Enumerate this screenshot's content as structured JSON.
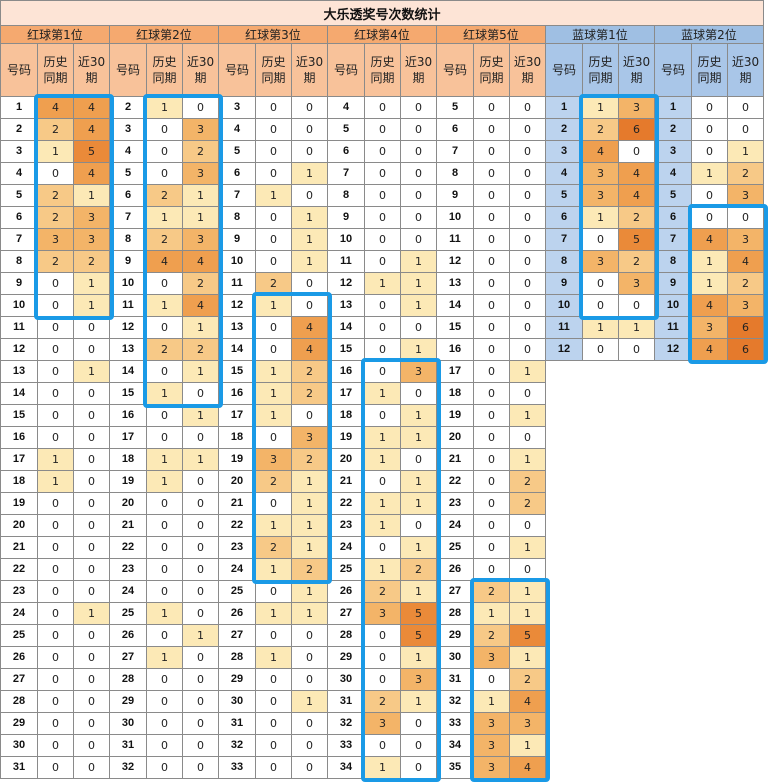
{
  "title": "大乐透奖号次数统计",
  "columns": {
    "num": "号码",
    "hist": "历史同期",
    "recent": "近30期"
  },
  "groups": [
    {
      "name": "红球第1位",
      "color": "red",
      "rows": [
        [
          1,
          4,
          4
        ],
        [
          2,
          2,
          4
        ],
        [
          3,
          1,
          5
        ],
        [
          4,
          0,
          4
        ],
        [
          5,
          2,
          1
        ],
        [
          6,
          2,
          3
        ],
        [
          7,
          3,
          3
        ],
        [
          8,
          2,
          2
        ],
        [
          9,
          0,
          1
        ],
        [
          10,
          0,
          1
        ],
        [
          11,
          0,
          0
        ],
        [
          12,
          0,
          0
        ],
        [
          13,
          0,
          1
        ],
        [
          14,
          0,
          0
        ],
        [
          15,
          0,
          0
        ],
        [
          16,
          0,
          0
        ],
        [
          17,
          1,
          0
        ],
        [
          18,
          1,
          0
        ],
        [
          19,
          0,
          0
        ],
        [
          20,
          0,
          0
        ],
        [
          21,
          0,
          0
        ],
        [
          22,
          0,
          0
        ],
        [
          23,
          0,
          0
        ],
        [
          24,
          0,
          1
        ],
        [
          25,
          0,
          0
        ],
        [
          26,
          0,
          0
        ],
        [
          27,
          0,
          0
        ],
        [
          28,
          0,
          0
        ],
        [
          29,
          0,
          0
        ],
        [
          30,
          0,
          0
        ],
        [
          31,
          0,
          0
        ]
      ]
    },
    {
      "name": "红球第2位",
      "color": "red",
      "rows": [
        [
          2,
          1,
          0
        ],
        [
          3,
          0,
          3
        ],
        [
          4,
          0,
          2
        ],
        [
          5,
          0,
          3
        ],
        [
          6,
          2,
          1
        ],
        [
          7,
          1,
          1
        ],
        [
          8,
          2,
          3
        ],
        [
          9,
          4,
          4
        ],
        [
          10,
          0,
          2
        ],
        [
          11,
          1,
          4
        ],
        [
          12,
          0,
          1
        ],
        [
          13,
          2,
          2
        ],
        [
          14,
          0,
          1
        ],
        [
          15,
          1,
          0
        ],
        [
          16,
          0,
          1
        ],
        [
          17,
          0,
          0
        ],
        [
          18,
          1,
          1
        ],
        [
          19,
          1,
          0
        ],
        [
          20,
          0,
          0
        ],
        [
          21,
          0,
          0
        ],
        [
          22,
          0,
          0
        ],
        [
          23,
          0,
          0
        ],
        [
          24,
          0,
          0
        ],
        [
          25,
          1,
          0
        ],
        [
          26,
          0,
          1
        ],
        [
          27,
          1,
          0
        ],
        [
          28,
          0,
          0
        ],
        [
          29,
          0,
          0
        ],
        [
          30,
          0,
          0
        ],
        [
          31,
          0,
          0
        ],
        [
          32,
          0,
          0
        ]
      ]
    },
    {
      "name": "红球第3位",
      "color": "red",
      "rows": [
        [
          3,
          0,
          0
        ],
        [
          4,
          0,
          0
        ],
        [
          5,
          0,
          0
        ],
        [
          6,
          0,
          1
        ],
        [
          7,
          1,
          0
        ],
        [
          8,
          0,
          1
        ],
        [
          9,
          0,
          1
        ],
        [
          10,
          0,
          1
        ],
        [
          11,
          2,
          0
        ],
        [
          12,
          1,
          0
        ],
        [
          13,
          0,
          4
        ],
        [
          14,
          0,
          4
        ],
        [
          15,
          1,
          2
        ],
        [
          16,
          1,
          2
        ],
        [
          17,
          1,
          0
        ],
        [
          18,
          0,
          3
        ],
        [
          19,
          3,
          2
        ],
        [
          20,
          2,
          1
        ],
        [
          21,
          0,
          1
        ],
        [
          22,
          1,
          1
        ],
        [
          23,
          2,
          1
        ],
        [
          24,
          1,
          2
        ],
        [
          25,
          0,
          1
        ],
        [
          26,
          1,
          1
        ],
        [
          27,
          0,
          0
        ],
        [
          28,
          1,
          0
        ],
        [
          29,
          0,
          0
        ],
        [
          30,
          0,
          1
        ],
        [
          31,
          0,
          0
        ],
        [
          32,
          0,
          0
        ],
        [
          33,
          0,
          0
        ]
      ]
    },
    {
      "name": "红球第4位",
      "color": "red",
      "rows": [
        [
          4,
          0,
          0
        ],
        [
          5,
          0,
          0
        ],
        [
          6,
          0,
          0
        ],
        [
          7,
          0,
          0
        ],
        [
          8,
          0,
          0
        ],
        [
          9,
          0,
          0
        ],
        [
          10,
          0,
          0
        ],
        [
          11,
          0,
          1
        ],
        [
          12,
          1,
          1
        ],
        [
          13,
          0,
          1
        ],
        [
          14,
          0,
          0
        ],
        [
          15,
          0,
          1
        ],
        [
          16,
          0,
          3
        ],
        [
          17,
          1,
          0
        ],
        [
          18,
          0,
          1
        ],
        [
          19,
          1,
          1
        ],
        [
          20,
          1,
          0
        ],
        [
          21,
          0,
          1
        ],
        [
          22,
          1,
          1
        ],
        [
          23,
          1,
          0
        ],
        [
          24,
          0,
          1
        ],
        [
          25,
          1,
          2
        ],
        [
          26,
          2,
          1
        ],
        [
          27,
          3,
          5
        ],
        [
          28,
          0,
          5
        ],
        [
          29,
          0,
          1
        ],
        [
          30,
          0,
          3
        ],
        [
          31,
          2,
          1
        ],
        [
          32,
          3,
          0
        ],
        [
          33,
          0,
          0
        ],
        [
          34,
          1,
          0
        ]
      ]
    },
    {
      "name": "红球第5位",
      "color": "red",
      "rows": [
        [
          5,
          0,
          0
        ],
        [
          6,
          0,
          0
        ],
        [
          7,
          0,
          0
        ],
        [
          8,
          0,
          0
        ],
        [
          9,
          0,
          0
        ],
        [
          10,
          0,
          0
        ],
        [
          11,
          0,
          0
        ],
        [
          12,
          0,
          0
        ],
        [
          13,
          0,
          0
        ],
        [
          14,
          0,
          0
        ],
        [
          15,
          0,
          0
        ],
        [
          16,
          0,
          0
        ],
        [
          17,
          0,
          1
        ],
        [
          18,
          0,
          0
        ],
        [
          19,
          0,
          1
        ],
        [
          20,
          0,
          0
        ],
        [
          21,
          0,
          1
        ],
        [
          22,
          0,
          2
        ],
        [
          23,
          0,
          2
        ],
        [
          24,
          0,
          0
        ],
        [
          25,
          0,
          1
        ],
        [
          26,
          0,
          0
        ],
        [
          27,
          2,
          1
        ],
        [
          28,
          1,
          1
        ],
        [
          29,
          2,
          5
        ],
        [
          30,
          3,
          1
        ],
        [
          31,
          0,
          2
        ],
        [
          32,
          1,
          4
        ],
        [
          33,
          3,
          3
        ],
        [
          34,
          3,
          1
        ],
        [
          35,
          3,
          4
        ]
      ]
    },
    {
      "name": "蓝球第1位",
      "color": "blue",
      "rows": [
        [
          1,
          1,
          3
        ],
        [
          2,
          2,
          6
        ],
        [
          3,
          4,
          0
        ],
        [
          4,
          3,
          4
        ],
        [
          5,
          3,
          4
        ],
        [
          6,
          1,
          2
        ],
        [
          7,
          0,
          5
        ],
        [
          8,
          3,
          2
        ],
        [
          9,
          0,
          3
        ],
        [
          10,
          0,
          0
        ],
        [
          11,
          1,
          1
        ],
        [
          12,
          0,
          0
        ]
      ]
    },
    {
      "name": "蓝球第2位",
      "color": "blue",
      "rows": [
        [
          1,
          0,
          0
        ],
        [
          2,
          0,
          0
        ],
        [
          3,
          0,
          1
        ],
        [
          4,
          1,
          2
        ],
        [
          5,
          0,
          3
        ],
        [
          6,
          0,
          0
        ],
        [
          7,
          4,
          3
        ],
        [
          8,
          1,
          4
        ],
        [
          9,
          1,
          2
        ],
        [
          10,
          4,
          3
        ],
        [
          11,
          3,
          6
        ],
        [
          12,
          4,
          6
        ]
      ]
    }
  ],
  "highlight_color": "#1a9ae6"
}
